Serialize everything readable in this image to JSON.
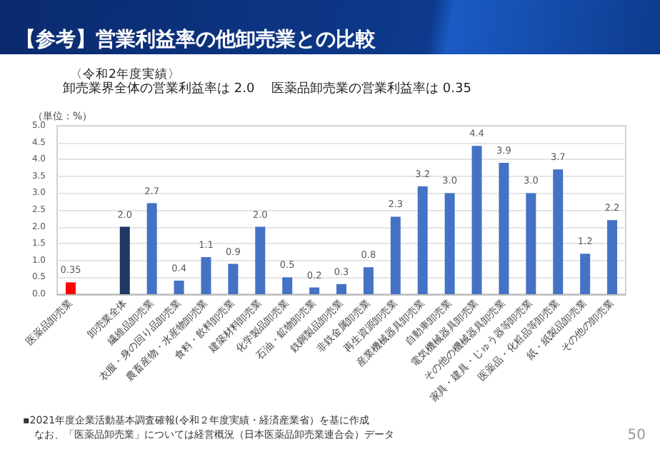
{
  "chart_data": {
    "type": "bar",
    "title": "【参考】営業利益率の他卸売業との比較",
    "subtitle": "〈令和2年度実績〉",
    "ylabel": "（単位：%）",
    "categories": [
      "医薬品卸売業",
      null,
      "卸売業全体",
      "繊維品卸売業",
      "衣服・身の回り品卸売業",
      "農畜産物・水産物卸売業",
      "食料・飲料卸売業",
      "建築材料卸売業",
      "化学製品卸売業",
      "石油・鉱物卸売業",
      "鉄鋼製品卸売業",
      "非鉄金属卸売業",
      "再生資源卸売業",
      "産業機械器具卸売業",
      "自動車卸売業",
      "電気機械器具卸売業",
      "その他の機械器具卸売業",
      "家具・建具・じゅう器等卸売業",
      "医薬品・化粧品等卸売業",
      "紙・紙製品卸売業",
      "その他の卸売業"
    ],
    "values": [
      0.35,
      null,
      2.0,
      2.7,
      0.4,
      1.1,
      0.9,
      2.0,
      0.5,
      0.2,
      0.3,
      0.8,
      2.3,
      3.2,
      3.0,
      4.4,
      3.9,
      3.0,
      3.7,
      1.2,
      2.2
    ],
    "value_labels": [
      "0.35",
      null,
      "2.0",
      "2.7",
      "0.4",
      "1.1",
      "0.9",
      "2.0",
      "0.5",
      "0.2",
      "0.3",
      "0.8",
      "2.3",
      "3.2",
      "3.0",
      "4.4",
      "3.9",
      "3.0",
      "3.7",
      "1.2",
      "2.2"
    ],
    "colors": [
      "#ff0000",
      null,
      "#1f3864",
      "#4472c4",
      "#4472c4",
      "#4472c4",
      "#4472c4",
      "#4472c4",
      "#4472c4",
      "#4472c4",
      "#4472c4",
      "#4472c4",
      "#4472c4",
      "#4472c4",
      "#4472c4",
      "#4472c4",
      "#4472c4",
      "#4472c4",
      "#4472c4",
      "#4472c4",
      "#4472c4"
    ],
    "ylim": [
      0,
      5
    ],
    "yticks": [
      {
        "value": 0,
        "label": "0.0"
      },
      {
        "value": 0.5,
        "label": "0.5"
      },
      {
        "value": 1,
        "label": "1.0"
      },
      {
        "value": 1.5,
        "label": "1.5"
      },
      {
        "value": 2,
        "label": "2.0"
      },
      {
        "value": 2.5,
        "label": "2.5"
      },
      {
        "value": 3,
        "label": "3.0"
      },
      {
        "value": 3.5,
        "label": "3.5"
      },
      {
        "value": 4,
        "label": "4.0"
      },
      {
        "value": 4.5,
        "label": "4.5"
      },
      {
        "value": 5,
        "label": "5.0"
      }
    ],
    "grid": "y",
    "annotations": [
      "卸売業界全体の営業利益率は 2.0　 医薬品卸売業の営業利益率は 0.35",
      "▪2021年度企業活動基本調査確報(令和２年度実績・経済産業省）を基に作成",
      "なお、「医薬品卸売業」については経営概況（日本医薬品卸売業連合会）データ",
      "50"
    ]
  }
}
